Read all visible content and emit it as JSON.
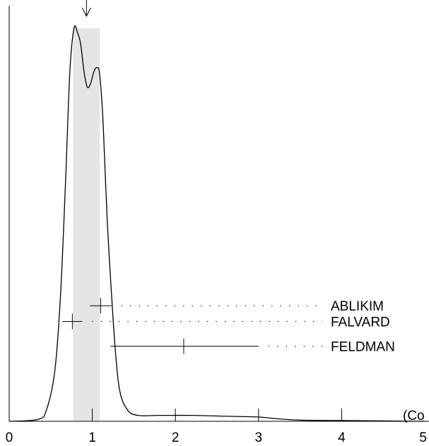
{
  "chart_data": {
    "type": "line",
    "title": "",
    "xlabel": "",
    "ylabel": "",
    "xlim": [
      0,
      5
    ],
    "unit_label_partial": "(Co",
    "x_ticks": [
      {
        "value": 0,
        "label": "0"
      },
      {
        "value": 1,
        "label": "1"
      },
      {
        "value": 2,
        "label": "2"
      },
      {
        "value": 3,
        "label": "3"
      },
      {
        "value": 4,
        "label": "4"
      },
      {
        "value": 5,
        "label": "5"
      }
    ],
    "band": {
      "xmin": 0.77,
      "xmax": 1.09,
      "color": "#e5e5e5"
    },
    "arrow_x": 0.93,
    "ideogram": {
      "x": [
        0.0,
        0.35,
        0.45,
        0.55,
        0.62,
        0.68,
        0.73,
        0.78,
        0.82,
        0.86,
        0.9,
        0.94,
        0.98,
        1.02,
        1.06,
        1.09,
        1.13,
        1.18,
        1.25,
        1.32,
        1.42,
        1.55,
        1.8,
        2.2,
        2.6,
        3.0,
        3.2,
        3.5,
        4.0,
        4.5,
        5.0
      ],
      "y": [
        0.0,
        0.005,
        0.03,
        0.13,
        0.33,
        0.62,
        0.89,
        1.0,
        0.99,
        0.96,
        0.89,
        0.85,
        0.86,
        0.89,
        0.9,
        0.88,
        0.76,
        0.51,
        0.26,
        0.09,
        0.03,
        0.015,
        0.015,
        0.015,
        0.013,
        0.011,
        0.007,
        0.003,
        0.002,
        0.001,
        0.0
      ]
    },
    "measurements": [
      {
        "name": "ABLIKIM",
        "value": 1.1,
        "err_low": 0.13,
        "err_high": 0.13,
        "level": 0.294
      },
      {
        "name": "FALVARD",
        "value": 0.76,
        "err_low": 0.12,
        "err_high": 0.12,
        "level": 0.254
      },
      {
        "name": "FELDMAN",
        "value": 2.1,
        "err_low": 0.88,
        "err_high": 0.9,
        "level": 0.191
      }
    ],
    "grid": false,
    "legend": "none",
    "colors": {
      "curve": "#000000",
      "band": "#e5e5e5",
      "axis": "#000000"
    }
  }
}
